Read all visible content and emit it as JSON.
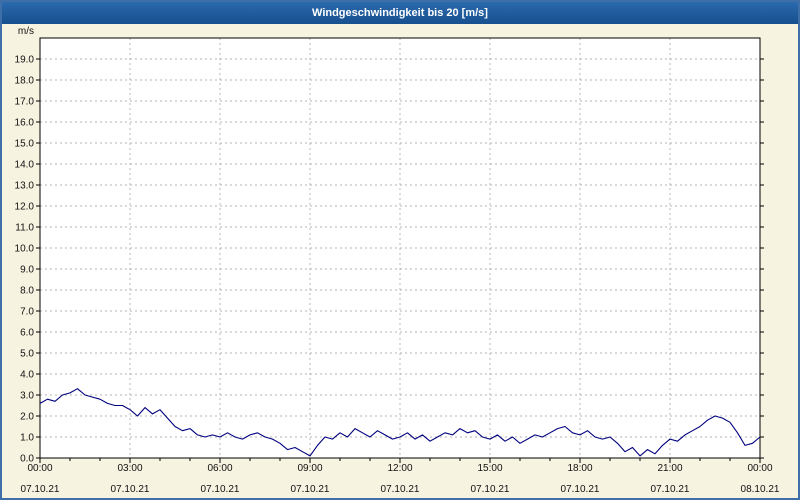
{
  "title": "Windgeschwindigkeit bis 20 [m/s]",
  "chart_data": {
    "type": "line",
    "title": "Windgeschwindigkeit bis 20 [m/s]",
    "ylabel": "m/s",
    "xlabel": "",
    "ylim": [
      0,
      20
    ],
    "y_tick_labels": [
      "0.0",
      "1.0",
      "2.0",
      "3.0",
      "4.0",
      "5.0",
      "6.0",
      "7.0",
      "8.0",
      "9.0",
      "10.0",
      "11.0",
      "12.0",
      "13.0",
      "14.0",
      "15.0",
      "16.0",
      "17.0",
      "18.0",
      "19.0"
    ],
    "x_range_hours": [
      0,
      24
    ],
    "x_ticks": [
      {
        "hour": 0,
        "time": "00:00",
        "date": "07.10.21"
      },
      {
        "hour": 3,
        "time": "03:00",
        "date": "07.10.21"
      },
      {
        "hour": 6,
        "time": "06:00",
        "date": "07.10.21"
      },
      {
        "hour": 9,
        "time": "09:00",
        "date": "07.10.21"
      },
      {
        "hour": 12,
        "time": "12:00",
        "date": "07.10.21"
      },
      {
        "hour": 15,
        "time": "15:00",
        "date": "07.10.21"
      },
      {
        "hour": 18,
        "time": "18:00",
        "date": "07.10.21"
      },
      {
        "hour": 21,
        "time": "21:00",
        "date": "07.10.21"
      },
      {
        "hour": 24,
        "time": "00:00",
        "date": "08.10.21"
      }
    ],
    "grid": true,
    "legend": "none",
    "colors": {
      "line": "#00007f",
      "grid": "#9a9a9a",
      "axis": "#000000",
      "plot_bg": "#ffffff",
      "page_bg": "#f7f3e1",
      "titlebar": "#1b559a"
    },
    "series": [
      {
        "name": "Windgeschwindigkeit",
        "unit": "m/s",
        "x_start_hour": 0,
        "x_step_hours": 0.25,
        "values": [
          2.6,
          2.8,
          2.7,
          3.0,
          3.1,
          3.3,
          3.0,
          2.9,
          2.8,
          2.6,
          2.5,
          2.5,
          2.3,
          2.0,
          2.4,
          2.1,
          2.3,
          1.9,
          1.5,
          1.3,
          1.4,
          1.1,
          1.0,
          1.1,
          1.0,
          1.2,
          1.0,
          0.9,
          1.1,
          1.2,
          1.0,
          0.9,
          0.7,
          0.4,
          0.5,
          0.3,
          0.1,
          0.6,
          1.0,
          0.9,
          1.2,
          1.0,
          1.4,
          1.2,
          1.0,
          1.3,
          1.1,
          0.9,
          1.0,
          1.2,
          0.9,
          1.1,
          0.8,
          1.0,
          1.2,
          1.1,
          1.4,
          1.2,
          1.3,
          1.0,
          0.9,
          1.1,
          0.8,
          1.0,
          0.7,
          0.9,
          1.1,
          1.0,
          1.2,
          1.4,
          1.5,
          1.2,
          1.1,
          1.3,
          1.0,
          0.9,
          1.0,
          0.7,
          0.3,
          0.5,
          0.1,
          0.4,
          0.2,
          0.6,
          0.9,
          0.8,
          1.1,
          1.3,
          1.5,
          1.8,
          2.0,
          1.9,
          1.7,
          1.2,
          0.6,
          0.7,
          1.0
        ]
      }
    ]
  }
}
